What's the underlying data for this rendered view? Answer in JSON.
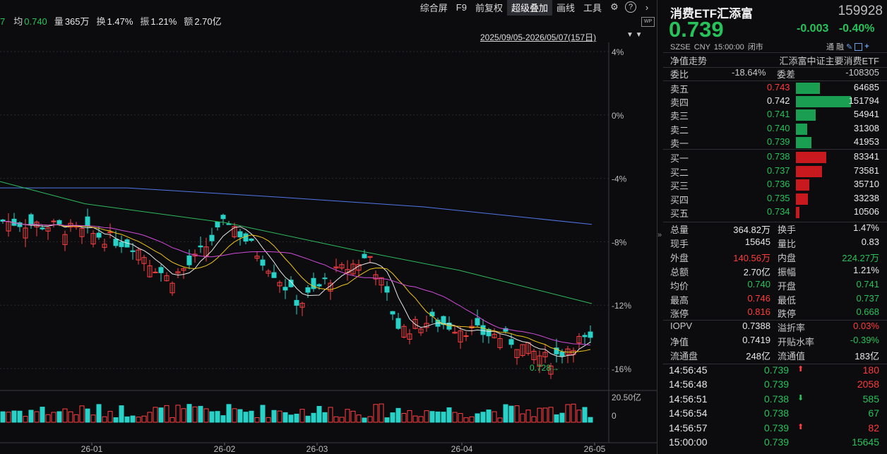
{
  "top_stats": [
    {
      "label": "7",
      "value": "",
      "color": "#27c25a"
    },
    {
      "label": "均",
      "value": "0.740",
      "color": "#27c25a"
    },
    {
      "label": "量",
      "value": "365万",
      "color": "#e8e8e8"
    },
    {
      "label": "换",
      "value": "1.47%",
      "color": "#e8e8e8"
    },
    {
      "label": "振",
      "value": "1.21%",
      "color": "#e8e8e8"
    },
    {
      "label": "额",
      "value": "2.70亿",
      "color": "#e8e8e8"
    }
  ],
  "menu": {
    "items": [
      "综合屏",
      "F9",
      "前复权",
      "超级叠加",
      "画线",
      "工具"
    ],
    "active": "超级叠加",
    "icons": [
      "gear-icon",
      "help-icon",
      "chevron-right-icon"
    ]
  },
  "date_range": "2025/09/05-2026/05/07(157日)",
  "wp_badge": "WP",
  "chart_data": {
    "type": "candlestick",
    "y_axis_labels": [
      "4%",
      "0%",
      "-4%",
      "-8%",
      "-12%",
      "-16%"
    ],
    "x_axis_labels": [
      "26-01",
      "26-02",
      "26-03",
      "26-04",
      "26-05"
    ],
    "volume_axis_labels": [
      "20.50亿",
      "0"
    ],
    "min_annotation": "0.728",
    "grid": true,
    "colors": {
      "up": "#ff4040",
      "down": "#27d3c8",
      "ma5": "#e8e8e8",
      "ma10": "#f0c419",
      "ma20": "#d04bd8",
      "ma60": "#2dbb5c",
      "ma120": "#5177e8"
    }
  },
  "quote": {
    "name": "消费ETF汇添富",
    "code": "159928",
    "price": "0.739",
    "change": "-0.003",
    "change_pct": "-0.40%",
    "exchange": "SZSE",
    "currency": "CNY",
    "time": "15:00:00",
    "status": "闭市",
    "flags": [
      "通",
      "融"
    ],
    "nav_label": "净值走势",
    "index_name": "汇添富中证主要消费ETF"
  },
  "ratio": {
    "wb_label": "委比",
    "wb_value": "-18.64%",
    "wc_label": "委差",
    "wc_value": "-108305"
  },
  "sell_orders": [
    {
      "label": "卖五",
      "price": "0.743",
      "vol": "64685",
      "price_color": "#ff3b3b",
      "bar": 0.43
    },
    {
      "label": "卖四",
      "price": "0.742",
      "vol": "151794",
      "price_color": "#e8e8e8",
      "bar": 1.0
    },
    {
      "label": "卖三",
      "price": "0.741",
      "vol": "54941",
      "price_color": "#27c25a",
      "bar": 0.36
    },
    {
      "label": "卖二",
      "price": "0.740",
      "vol": "31308",
      "price_color": "#27c25a",
      "bar": 0.21
    },
    {
      "label": "卖一",
      "price": "0.739",
      "vol": "41953",
      "price_color": "#27c25a",
      "bar": 0.28
    }
  ],
  "buy_orders": [
    {
      "label": "买一",
      "price": "0.738",
      "vol": "83341",
      "price_color": "#27c25a",
      "bar": 0.55
    },
    {
      "label": "买二",
      "price": "0.737",
      "vol": "73581",
      "price_color": "#27c25a",
      "bar": 0.48
    },
    {
      "label": "买三",
      "price": "0.736",
      "vol": "35710",
      "price_color": "#27c25a",
      "bar": 0.24
    },
    {
      "label": "买四",
      "price": "0.735",
      "vol": "33238",
      "price_color": "#27c25a",
      "bar": 0.22
    },
    {
      "label": "买五",
      "price": "0.734",
      "vol": "10506",
      "price_color": "#27c25a",
      "bar": 0.07
    }
  ],
  "stats": [
    [
      "总量",
      "364.82万",
      "#e8e8e8",
      "换手",
      "1.47%",
      "#e8e8e8"
    ],
    [
      "现手",
      "15645",
      "#e8e8e8",
      "量比",
      "0.83",
      "#e8e8e8"
    ],
    [
      "外盘",
      "140.56万",
      "#ff3b3b",
      "内盘",
      "224.27万",
      "#27c25a"
    ],
    [
      "总额",
      "2.70亿",
      "#e8e8e8",
      "振幅",
      "1.21%",
      "#e8e8e8"
    ],
    [
      "均价",
      "0.740",
      "#27c25a",
      "开盘",
      "0.741",
      "#27c25a"
    ],
    [
      "最高",
      "0.746",
      "#ff3b3b",
      "最低",
      "0.737",
      "#27c25a"
    ],
    [
      "涨停",
      "0.816",
      "#ff3b3b",
      "跌停",
      "0.668",
      "#27c25a"
    ],
    [
      "IOPV",
      "0.7388",
      "#e8e8e8",
      "溢折率",
      "0.03%",
      "#ff3b3b"
    ],
    [
      "净值",
      "0.7419",
      "#e8e8e8",
      "开贴水率",
      "-0.39%",
      "#27c25a"
    ],
    [
      "流通盘",
      "248亿",
      "#e8e8e8",
      "流通值",
      "183亿",
      "#e8e8e8"
    ]
  ],
  "ticks": [
    {
      "time": "14:56:45",
      "price": "0.739",
      "dir": "up",
      "vol": "180",
      "vol_color": "#ff3b3b"
    },
    {
      "time": "14:56:48",
      "price": "0.739",
      "dir": "",
      "vol": "2058",
      "vol_color": "#ff3b3b"
    },
    {
      "time": "14:56:51",
      "price": "0.738",
      "dir": "down",
      "vol": "585",
      "vol_color": "#27c25a"
    },
    {
      "time": "14:56:54",
      "price": "0.738",
      "dir": "",
      "vol": "67",
      "vol_color": "#27c25a"
    },
    {
      "time": "14:56:57",
      "price": "0.739",
      "dir": "up",
      "vol": "82",
      "vol_color": "#ff3b3b"
    },
    {
      "time": "15:00:00",
      "price": "0.739",
      "dir": "",
      "vol": "15645",
      "vol_color": "#27c25a"
    }
  ]
}
